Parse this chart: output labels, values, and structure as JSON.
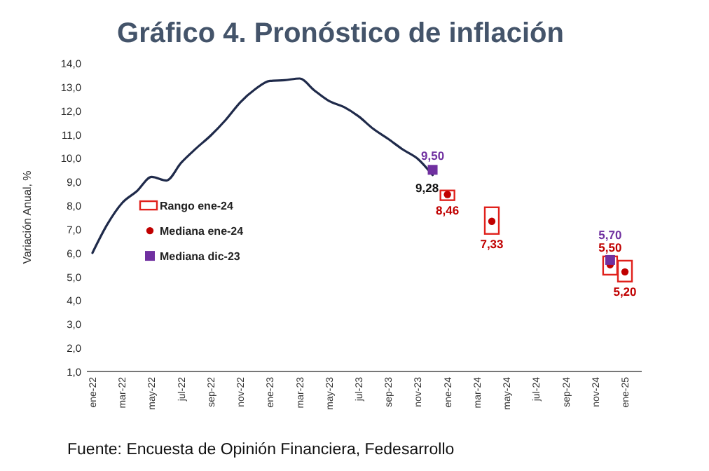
{
  "chart_data": {
    "type": "line",
    "title": "Gráfico 4. Pronóstico de inflación",
    "ylabel": "Variación Anual, %",
    "categories": [
      "ene-22",
      null,
      "mar-22",
      null,
      "may-22",
      null,
      "jul-22",
      null,
      "sep-22",
      null,
      "nov-22",
      null,
      "ene-23",
      null,
      "mar-23",
      null,
      "may-23",
      null,
      "jul-23",
      null,
      "sep-23",
      null,
      "nov-23",
      null,
      "ene-24",
      null,
      "mar-24",
      null,
      "may-24",
      null,
      "jul-24",
      null,
      "sep-24",
      null,
      "nov-24",
      null,
      "ene-25"
    ],
    "series": [
      {
        "color": "#1f2a4a",
        "values": [
          6.0,
          7.2,
          8.1,
          8.6,
          9.2,
          9.05,
          9.8,
          10.4,
          10.95,
          11.6,
          12.35,
          12.9,
          13.25,
          13.28,
          13.35,
          12.85,
          12.4,
          12.15,
          11.75,
          11.22,
          10.8,
          10.35,
          9.96,
          9.28,
          null,
          null,
          null,
          null,
          null,
          null,
          null,
          null,
          null,
          null,
          null,
          null,
          null
        ],
        "value_labels": [
          null,
          null,
          null,
          null,
          null,
          null,
          null,
          null,
          null,
          null,
          null,
          null,
          null,
          null,
          null,
          null,
          null,
          null,
          null,
          null,
          null,
          null,
          null,
          "9,28",
          null,
          null,
          null,
          null,
          null,
          null,
          null,
          null,
          null,
          null,
          null,
          null,
          null
        ]
      },
      {
        "type": "bar",
        "name": "Rango ene-24",
        "color": "#e0201b",
        "base": [
          null,
          null,
          null,
          null,
          null,
          null,
          null,
          null,
          null,
          null,
          null,
          null,
          null,
          null,
          null,
          null,
          null,
          null,
          null,
          null,
          null,
          null,
          null,
          null,
          8.22,
          null,
          null,
          6.8,
          null,
          null,
          null,
          null,
          null,
          null,
          null,
          5.08,
          4.79
        ],
        "values": [
          null,
          null,
          null,
          null,
          null,
          null,
          null,
          null,
          null,
          null,
          null,
          null,
          null,
          null,
          null,
          null,
          null,
          null,
          null,
          null,
          null,
          null,
          null,
          null,
          0.41,
          null,
          null,
          1.12,
          null,
          null,
          null,
          null,
          null,
          null,
          null,
          0.77,
          0.88
        ]
      },
      {
        "type": "scatter",
        "name": "Mediana ene-24",
        "color": "#c00000",
        "marker": "circle",
        "values": [
          null,
          null,
          null,
          null,
          null,
          null,
          null,
          null,
          null,
          null,
          null,
          null,
          null,
          null,
          null,
          null,
          null,
          null,
          null,
          null,
          null,
          null,
          null,
          null,
          8.46,
          null,
          null,
          7.33,
          null,
          null,
          null,
          null,
          null,
          null,
          null,
          5.5,
          5.2
        ],
        "value_labels": [
          null,
          null,
          null,
          null,
          null,
          null,
          null,
          null,
          null,
          null,
          null,
          null,
          null,
          null,
          null,
          null,
          null,
          null,
          null,
          null,
          null,
          null,
          null,
          null,
          "8,46",
          null,
          null,
          "7,33",
          null,
          null,
          null,
          null,
          null,
          null,
          null,
          "5,50",
          "5,20"
        ]
      },
      {
        "type": "scatter",
        "name": "Mediana dic-23",
        "color": "#7030a0",
        "marker": "square",
        "values": [
          null,
          null,
          null,
          null,
          null,
          null,
          null,
          null,
          null,
          null,
          null,
          null,
          null,
          null,
          null,
          null,
          null,
          null,
          null,
          null,
          null,
          null,
          null,
          9.5,
          null,
          null,
          null,
          null,
          null,
          null,
          null,
          null,
          null,
          null,
          null,
          5.7,
          null
        ],
        "value_labels": [
          null,
          null,
          null,
          null,
          null,
          null,
          null,
          null,
          null,
          null,
          null,
          null,
          null,
          null,
          null,
          null,
          null,
          null,
          null,
          null,
          null,
          null,
          null,
          "9,50",
          null,
          null,
          null,
          null,
          null,
          null,
          null,
          null,
          null,
          null,
          null,
          "5,70",
          null
        ]
      }
    ],
    "ylim": [
      1,
      14
    ],
    "yticks": [
      {
        "value": 1,
        "label": "1,0"
      },
      {
        "value": 2,
        "label": "2,0"
      },
      {
        "value": 3,
        "label": "3,0"
      },
      {
        "value": 4,
        "label": "4,0"
      },
      {
        "value": 5,
        "label": "5,0"
      },
      {
        "value": 6,
        "label": "6,0"
      },
      {
        "value": 7,
        "label": "7,0"
      },
      {
        "value": 8,
        "label": "8,0"
      },
      {
        "value": 9,
        "label": "9,0"
      },
      {
        "value": 10,
        "label": "10,0"
      },
      {
        "value": 11,
        "label": "11,0"
      },
      {
        "value": 12,
        "label": "12,0"
      },
      {
        "value": 13,
        "label": "13,0"
      },
      {
        "value": 14,
        "label": "14,0"
      }
    ],
    "grid": false,
    "legend": "left",
    "annotations": [
      "Fuente: Encuesta de Opinión Financiera, Fedesarrollo"
    ]
  }
}
